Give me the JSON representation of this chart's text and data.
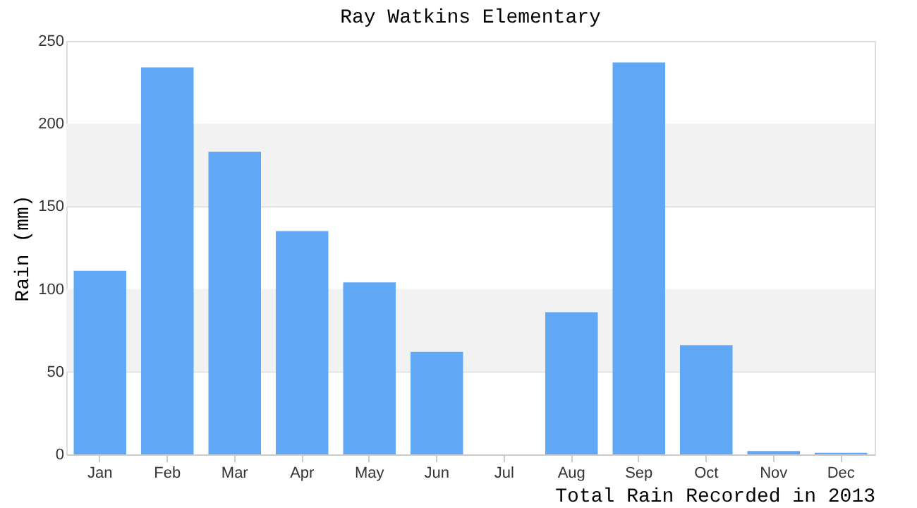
{
  "chart_data": {
    "type": "bar",
    "title": "Ray Watkins Elementary",
    "xlabel": "Total Rain Recorded in 2013",
    "ylabel": "Rain (mm)",
    "categories": [
      "Jan",
      "Feb",
      "Mar",
      "Apr",
      "May",
      "Jun",
      "Jul",
      "Aug",
      "Sep",
      "Oct",
      "Nov",
      "Dec"
    ],
    "values": [
      111,
      234,
      183,
      135,
      104,
      62,
      0,
      86,
      237,
      66,
      2,
      1
    ],
    "color": "#60a8f5",
    "ylim": [
      0,
      250
    ],
    "yticks": [
      0,
      50,
      100,
      150,
      200,
      250
    ],
    "grid": "y",
    "bands": [
      {
        "axis": "y",
        "from": 150,
        "to": 200,
        "color": "#f2f2f2"
      },
      {
        "axis": "y",
        "from": 50,
        "to": 100,
        "color": "#f2f2f2"
      }
    ]
  }
}
